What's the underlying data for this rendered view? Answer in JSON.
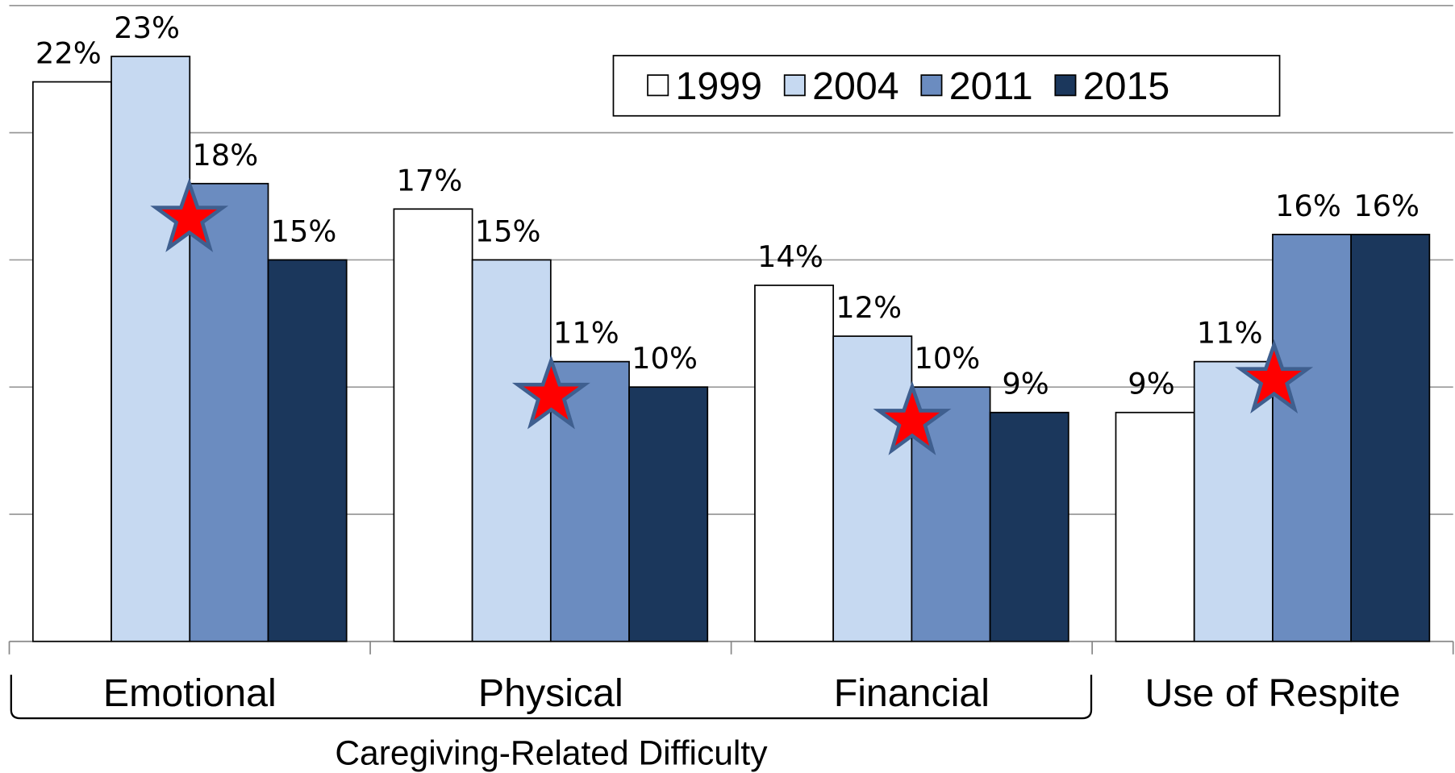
{
  "chart_data": {
    "type": "bar",
    "x_label": "Caregiving-Related Difficulty",
    "categories": [
      "Emotional",
      "Physical",
      "Financial",
      "Use of Respite"
    ],
    "series": [
      {
        "name": "1999",
        "color": "#ffffff",
        "values": [
          22,
          17,
          14,
          9
        ],
        "value_labels": [
          "22%",
          "17%",
          "14%",
          "9%"
        ]
      },
      {
        "name": "2004",
        "color": "#c6d9f1",
        "values": [
          23,
          15,
          12,
          11
        ],
        "value_labels": [
          "23%",
          "15%",
          "12%",
          "11%"
        ]
      },
      {
        "name": "2011",
        "color": "#6b8cc0",
        "values": [
          18,
          11,
          10,
          16
        ],
        "value_labels": [
          "18%",
          "11%",
          "10%",
          "16%"
        ]
      },
      {
        "name": "2015",
        "color": "#1b375c",
        "values": [
          15,
          10,
          9,
          16
        ],
        "value_labels": [
          "15%",
          "10%",
          "9%",
          "16%"
        ]
      }
    ],
    "ylim": [
      0,
      25
    ],
    "yticks": [
      0,
      5,
      10,
      15,
      20,
      25
    ],
    "grid": true
  }
}
